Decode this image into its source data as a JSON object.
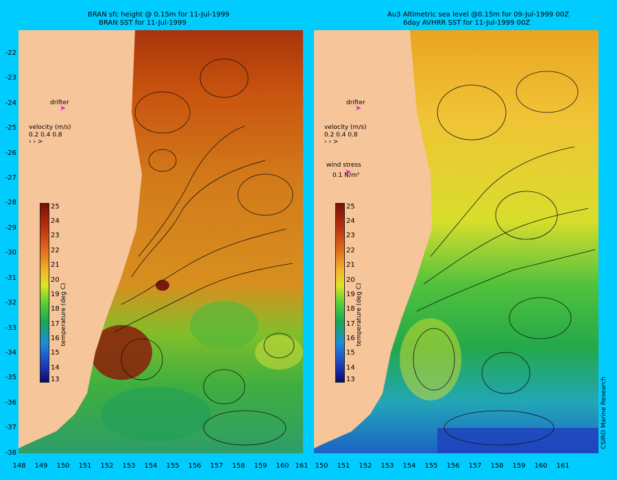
{
  "left_panel": {
    "title_line1": "BRAN sfc height @ 0.15m  for 11-Jul-1999",
    "title_line2": "BRAN SST for 11-Jul-1999",
    "drifter_label": "drifter",
    "velocity_label": "velocity (m/s)",
    "velocity_scale": "0.2 0.4 0.8",
    "colorbar_caption": "temperature (deg C)"
  },
  "right_panel": {
    "title_line1": "Au3 Altimetric sea level  @0.15m  for 09-Jul-1999 00Z",
    "title_line2": "6day AVHRR SST for 11-Jul-1999 00Z",
    "drifter_label": "drifter",
    "velocity_label": "velocity (m/s)",
    "velocity_scale": "0.2 0.4 0.8",
    "wind_label": "wind stress",
    "wind_value": "0.1 N/m²",
    "colorbar_caption": "temperature (deg C)"
  },
  "axes": {
    "y_ticks": [
      "-22",
      "-23",
      "-24",
      "-25",
      "-26",
      "-27",
      "-28",
      "-29",
      "-30",
      "-31",
      "-32",
      "-33",
      "-34",
      "-35",
      "-36",
      "-37",
      "-38"
    ],
    "x_ticks": [
      "148",
      "149",
      "150",
      "151",
      "152",
      "153",
      "154",
      "155",
      "156",
      "157",
      "158",
      "159",
      "160",
      "161"
    ]
  },
  "colorbar": {
    "ticks": [
      "25",
      "24",
      "23",
      "22",
      "21",
      "20",
      "19",
      "18",
      "17",
      "16",
      "15",
      "14",
      "13"
    ]
  },
  "credit": "CSIRO Marine Research",
  "colors": {
    "background": "#00ccff",
    "land": "#f7c59a",
    "drifter": "#e020e0"
  }
}
